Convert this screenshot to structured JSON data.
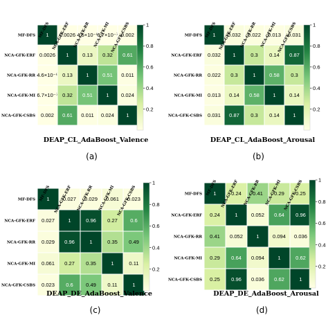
{
  "chart_data": [
    {
      "type": "heatmap",
      "title": "DEAP_CL_AdaBoost_Valence",
      "caption": "(a)",
      "labels": [
        "MF-DFS",
        "NCA-GFK-ERF",
        "NCA-GFK-RR",
        "NCA-GFK-MI",
        "NCA-GFK-CSBS"
      ],
      "values": [
        [
          1,
          0.0026,
          4.6e-06,
          6.7e-07,
          0.002
        ],
        [
          0.0026,
          1,
          0.13,
          0.32,
          0.61
        ],
        [
          4.6e-06,
          0.13,
          1,
          0.51,
          0.011
        ],
        [
          6.7e-07,
          0.32,
          0.51,
          1,
          0.024
        ],
        [
          0.002,
          0.61,
          0.011,
          0.024,
          1
        ]
      ],
      "value_labels": [
        [
          "1",
          "0.0026",
          "4.6×10⁻⁶",
          "6.7×10⁻⁷",
          "0.002"
        ],
        [
          "0.0026",
          "1",
          "0.13",
          "0.32",
          "0.61"
        ],
        [
          "4.6×10⁻⁶",
          "0.13",
          "1",
          "0.51",
          "0.011"
        ],
        [
          "6.7×10⁻⁷",
          "0.32",
          "0.51",
          "1",
          "0.024"
        ],
        [
          "0.002",
          "0.61",
          "0.011",
          "0.024",
          "1"
        ]
      ],
      "colorbar": {
        "range": [
          0,
          1
        ],
        "ticks": [
          "1",
          "0.8",
          "0.6",
          "0.4",
          "0.2"
        ]
      },
      "colormap": [
        "#ffffe5",
        "#d9f0a3",
        "#78c679",
        "#238443",
        "#004529"
      ]
    },
    {
      "type": "heatmap",
      "title": "DEAP_CL_AdaBoost_Arousal",
      "caption": "(b)",
      "labels": [
        "MF-DFS",
        "NCA-GFK-ERF",
        "NCA-GFK-RR",
        "NCA-GFK-MI",
        "NCA-GFK-CSBS"
      ],
      "values": [
        [
          1,
          0.032,
          0.022,
          0.013,
          0.031
        ],
        [
          0.032,
          1,
          0.3,
          0.14,
          0.87
        ],
        [
          0.022,
          0.3,
          1,
          0.58,
          0.3
        ],
        [
          0.013,
          0.14,
          0.58,
          1,
          0.14
        ],
        [
          0.031,
          0.87,
          0.3,
          0.14,
          1
        ]
      ],
      "value_labels": [
        [
          "1",
          "0.032",
          "0.022",
          "0.013",
          "0.031"
        ],
        [
          "0.032",
          "1",
          "0.3",
          "0.14",
          "0.87"
        ],
        [
          "0.022",
          "0.3",
          "1",
          "0.58",
          "0.3"
        ],
        [
          "0.013",
          "0.14",
          "0.58",
          "1",
          "0.14"
        ],
        [
          "0.031",
          "0.87",
          "0.3",
          "0.14",
          "1"
        ]
      ],
      "colorbar": {
        "range": [
          0,
          1
        ],
        "ticks": [
          "1",
          "0.8",
          "0.6",
          "0.4",
          "0.2"
        ]
      },
      "colormap": [
        "#ffffe5",
        "#d9f0a3",
        "#78c679",
        "#238443",
        "#004529"
      ]
    },
    {
      "type": "heatmap",
      "title": "DEAP_DE_AdaBoost_Valence",
      "caption": "(c)",
      "labels": [
        "MF-DFS",
        "NCA-GFK-ERF",
        "NCA-GFK-RR",
        "NCA-GFK-MI",
        "NCA-GFK-CSBS"
      ],
      "values": [
        [
          1,
          0.027,
          0.029,
          0.061,
          0.023
        ],
        [
          0.027,
          1,
          0.96,
          0.27,
          0.6
        ],
        [
          0.029,
          0.96,
          1,
          0.35,
          0.49
        ],
        [
          0.061,
          0.27,
          0.35,
          1,
          0.11
        ],
        [
          0.023,
          0.6,
          0.49,
          0.11,
          1
        ]
      ],
      "value_labels": [
        [
          "1",
          "0.027",
          "0.029",
          "0.061",
          "0.023"
        ],
        [
          "0.027",
          "1",
          "0.96",
          "0.27",
          "0.6"
        ],
        [
          "0.029",
          "0.96",
          "1",
          "0.35",
          "0.49"
        ],
        [
          "0.061",
          "0.27",
          "0.35",
          "1",
          "0.11"
        ],
        [
          "0.023",
          "0.6",
          "0.49",
          "0.11",
          "1"
        ]
      ],
      "colorbar": {
        "range": [
          0,
          1
        ],
        "ticks": [
          "1",
          "0.8",
          "0.6",
          "0.4",
          "0.2"
        ]
      },
      "colormap": [
        "#ffffe5",
        "#d9f0a3",
        "#78c679",
        "#238443",
        "#004529"
      ]
    },
    {
      "type": "heatmap",
      "title": "DEAP_DE_AdaBoost_Arousal",
      "caption": "(d)",
      "labels": [
        "MF-DFS",
        "NCA-GFK-ERF",
        "NCA-GFK-RR",
        "NCA-GFK-MI",
        "NCA-GFK-CSBS"
      ],
      "values": [
        [
          1,
          0.24,
          0.41,
          0.29,
          0.25
        ],
        [
          0.24,
          1,
          0.052,
          0.64,
          0.96
        ],
        [
          0.41,
          0.052,
          1,
          0.094,
          0.036
        ],
        [
          0.29,
          0.64,
          0.094,
          1,
          0.62
        ],
        [
          0.25,
          0.96,
          0.036,
          0.62,
          1
        ]
      ],
      "value_labels": [
        [
          "1",
          "0.24",
          "0.41",
          "0.29",
          "0.25"
        ],
        [
          "0.24",
          "1",
          "0.052",
          "0.64",
          "0.96"
        ],
        [
          "0.41",
          "0.052",
          "1",
          "0.094",
          "0.036"
        ],
        [
          "0.29",
          "0.64",
          "0.094",
          "1",
          "0.62"
        ],
        [
          "0.25",
          "0.96",
          "0.036",
          "0.62",
          "1"
        ]
      ],
      "colorbar": {
        "range": [
          0,
          1
        ],
        "ticks": [
          "1",
          "0.8",
          "0.6",
          "0.4",
          "0.2"
        ]
      },
      "colormap": [
        "#ffffe5",
        "#d9f0a3",
        "#78c679",
        "#238443",
        "#004529"
      ]
    }
  ]
}
